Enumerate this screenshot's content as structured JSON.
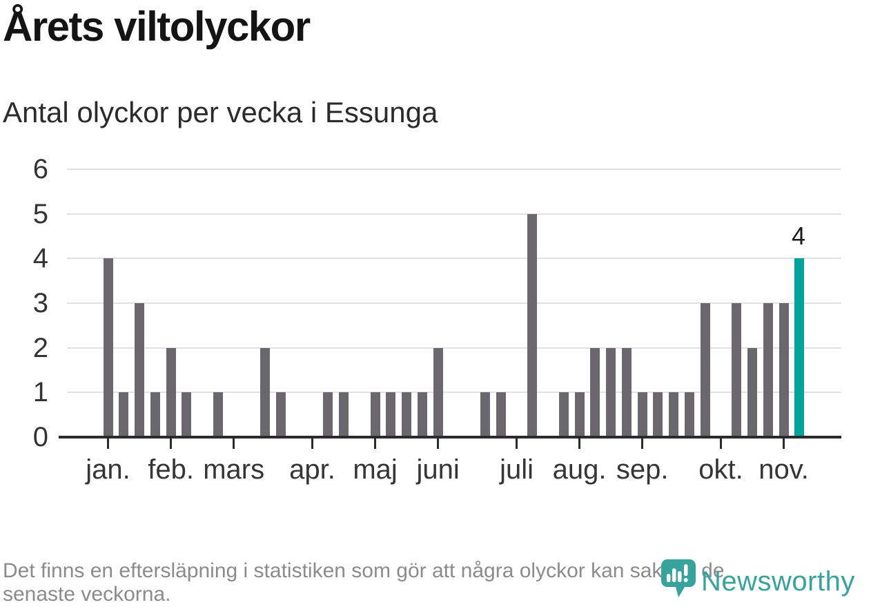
{
  "header": {
    "title": "Årets viltolyckor",
    "subtitle": "Antal olyckor per vecka i Essunga"
  },
  "chart_data": {
    "type": "bar",
    "title": "Årets viltolyckor",
    "subtitle": "Antal olyckor per vecka i Essunga",
    "x_unit": "week",
    "x_range": "january through mid-november, one bar per week",
    "ylim": [
      0,
      6
    ],
    "y_ticks": [
      0,
      1,
      2,
      3,
      4,
      5,
      6
    ],
    "grid": "horizontal",
    "legend": "none",
    "weekly_values": [
      4,
      1,
      3,
      1,
      2,
      1,
      0,
      1,
      0,
      0,
      2,
      1,
      0,
      0,
      1,
      1,
      0,
      1,
      1,
      1,
      1,
      2,
      0,
      0,
      1,
      1,
      0,
      5,
      0,
      1,
      1,
      2,
      2,
      2,
      1,
      1,
      1,
      1,
      3,
      0,
      3,
      2,
      3,
      3,
      4
    ],
    "month_ticks": [
      {
        "label": "jan.",
        "week": 0
      },
      {
        "label": "feb.",
        "week": 4
      },
      {
        "label": "mars",
        "week": 8
      },
      {
        "label": "apr.",
        "week": 13
      },
      {
        "label": "maj",
        "week": 17
      },
      {
        "label": "juni",
        "week": 21
      },
      {
        "label": "juli",
        "week": 26
      },
      {
        "label": "aug.",
        "week": 30
      },
      {
        "label": "sep.",
        "week": 34
      },
      {
        "label": "okt.",
        "week": 39
      },
      {
        "label": "nov.",
        "week": 43
      }
    ],
    "highlight": {
      "index": 44,
      "value": 4,
      "label": "4"
    },
    "colors": {
      "bar": "#6b676e",
      "highlight": "#00a49c",
      "gridline": "#e1e1e1",
      "axis": "#2b2b2b"
    }
  },
  "footer": {
    "line1": "Det finns en eftersläpning i statistiken som gör att några olyckor kan saknas de",
    "line2": "senaste veckorna."
  },
  "logo": {
    "text": "Newsworthy",
    "color": "#38a39c"
  }
}
